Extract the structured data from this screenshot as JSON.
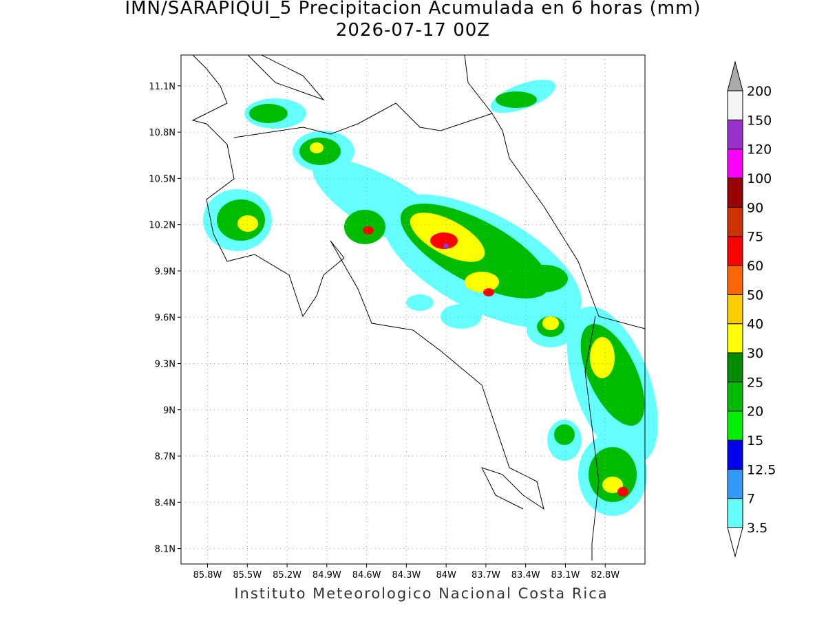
{
  "map": {
    "title": "IMN/SARAPIQUI_5 Precipitacion Acumulada en 6 horas (mm)",
    "subtitle": "2026-07-17 00Z",
    "footer": "Instituto Meteorologico Nacional Costa Rica",
    "xlim": [
      -86.0,
      -82.5
    ],
    "ylim": [
      8.0,
      11.3
    ],
    "xticks": [
      {
        "value": -85.8,
        "label": "85.8W"
      },
      {
        "value": -85.5,
        "label": "85.5W"
      },
      {
        "value": -85.2,
        "label": "85.2W"
      },
      {
        "value": -84.9,
        "label": "84.9W"
      },
      {
        "value": -84.6,
        "label": "84.6W"
      },
      {
        "value": -84.3,
        "label": "84.3W"
      },
      {
        "value": -84.0,
        "label": "84W"
      },
      {
        "value": -83.7,
        "label": "83.7W"
      },
      {
        "value": -83.4,
        "label": "83.4W"
      },
      {
        "value": -83.1,
        "label": "83.1W"
      },
      {
        "value": -82.8,
        "label": "82.8W"
      }
    ],
    "yticks": [
      {
        "value": 8.1,
        "label": "8.1N"
      },
      {
        "value": 8.4,
        "label": "8.4N"
      },
      {
        "value": 8.7,
        "label": "8.7N"
      },
      {
        "value": 9.0,
        "label": "9N"
      },
      {
        "value": 9.3,
        "label": "9.3N"
      },
      {
        "value": 9.6,
        "label": "9.6N"
      },
      {
        "value": 9.9,
        "label": "9.9N"
      },
      {
        "value": 10.2,
        "label": "10.2N"
      },
      {
        "value": 10.5,
        "label": "10.5N"
      },
      {
        "value": 10.8,
        "label": "10.8N"
      },
      {
        "value": 11.1,
        "label": "11.1N"
      }
    ],
    "grid": true,
    "colorbar": {
      "levels": [
        3.5,
        7,
        12.5,
        15,
        20,
        25,
        30,
        40,
        50,
        60,
        75,
        90,
        100,
        120,
        150,
        200
      ],
      "colors": [
        "#ffffff",
        "#66ffff",
        "#3399ff",
        "#0000ee",
        "#00ee00",
        "#00bb00",
        "#008b00",
        "#ffff00",
        "#ffcc00",
        "#ff6600",
        "#ff0000",
        "#cc3300",
        "#990000",
        "#ff00ff",
        "#9933cc",
        "#f4f4f4",
        "#aaaaaa"
      ]
    }
  }
}
